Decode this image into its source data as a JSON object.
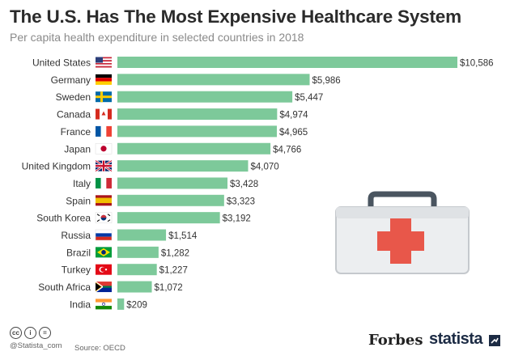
{
  "header": {
    "title": "The U.S. Has The Most Expensive Healthcare System",
    "subtitle": "Per capita health expenditure in selected countries in 2018"
  },
  "chart_data": {
    "type": "bar",
    "orientation": "horizontal",
    "categories": [
      "United States",
      "Germany",
      "Sweden",
      "Canada",
      "France",
      "Japan",
      "United Kingdom",
      "Italy",
      "Spain",
      "South Korea",
      "Russia",
      "Brazil",
      "Turkey",
      "South Africa",
      "India"
    ],
    "values": [
      10586,
      5986,
      5447,
      4974,
      4965,
      4766,
      4070,
      3428,
      3323,
      3192,
      1514,
      1282,
      1227,
      1072,
      209
    ],
    "value_labels": [
      "$10,586",
      "$5,986",
      "$5,447",
      "$4,974",
      "$4,965",
      "$4,766",
      "$4,070",
      "$3,428",
      "$3,323",
      "$3,192",
      "$1,514",
      "$1,282",
      "$1,227",
      "$1,072",
      "$209"
    ],
    "title": "The U.S. Has The Most Expensive Healthcare System",
    "subtitle": "Per capita health expenditure in selected countries in 2018",
    "xlim": [
      0,
      10586
    ],
    "grid": false,
    "legend": "none",
    "bar_color": "#7dc99a"
  },
  "flags": [
    "us-flag",
    "germany-flag",
    "sweden-flag",
    "canada-flag",
    "france-flag",
    "japan-flag",
    "uk-flag",
    "italy-flag",
    "spain-flag",
    "south-korea-flag",
    "russia-flag",
    "brazil-flag",
    "turkey-flag",
    "south-africa-flag",
    "india-flag"
  ],
  "illustration": {
    "icon": "first-aid-kit-icon",
    "cross_color": "#e8574a"
  },
  "footer": {
    "credit": "@Statista_com",
    "source": "Source: OECD",
    "brand_forbes": "Forbes",
    "brand_statista": "statista"
  }
}
